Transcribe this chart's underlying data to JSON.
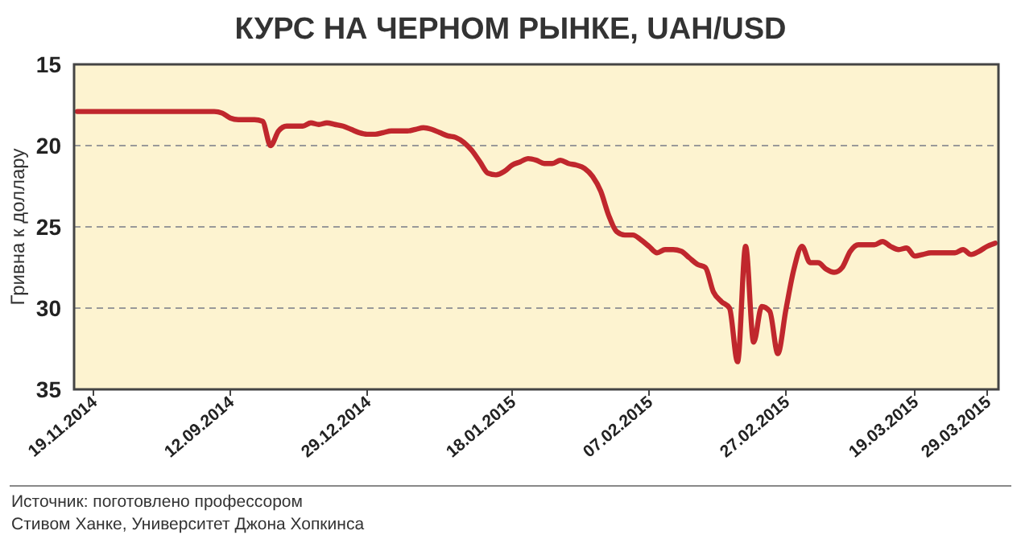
{
  "chart_data": {
    "type": "line",
    "title": "КУРС НА ЧЕРНОМ РЫНКЕ, UAH/USD",
    "ylabel": "Гривна к доллару",
    "categories": [
      null,
      null,
      "19.11.2014",
      null,
      null,
      null,
      null,
      null,
      null,
      null,
      null,
      null,
      null,
      null,
      null,
      null,
      null,
      null,
      null,
      "12.09.2014",
      null,
      null,
      null,
      null,
      null,
      null,
      null,
      null,
      null,
      null,
      null,
      null,
      null,
      null,
      null,
      null,
      "29.12.2014",
      null,
      null,
      null,
      null,
      null,
      null,
      null,
      null,
      null,
      null,
      null,
      null,
      null,
      null,
      null,
      null,
      null,
      "18.01.2015",
      null,
      null,
      null,
      null,
      null,
      null,
      null,
      null,
      null,
      null,
      null,
      null,
      null,
      null,
      null,
      null,
      "07.02.2015",
      null,
      null,
      null,
      null,
      null,
      null,
      null,
      null,
      null,
      null,
      null,
      null,
      null,
      null,
      null,
      null,
      "27.02.2015",
      null,
      null,
      null,
      null,
      null,
      null,
      null,
      null,
      null,
      null,
      null,
      null,
      null,
      null,
      null,
      "19.03.2015",
      null,
      null,
      null,
      null,
      null,
      null,
      null,
      null,
      "29.03.2015",
      null
    ],
    "series": [
      {
        "color": "#c0272d",
        "values": [
          17.9,
          17.9,
          17.9,
          17.9,
          17.9,
          17.9,
          17.9,
          17.9,
          17.9,
          17.9,
          17.9,
          17.9,
          17.9,
          17.9,
          17.9,
          17.9,
          17.9,
          17.9,
          18.0,
          18.3,
          18.4,
          18.4,
          18.4,
          18.5,
          20.0,
          19.1,
          18.8,
          18.8,
          18.8,
          18.6,
          18.7,
          18.6,
          18.7,
          18.8,
          19.0,
          19.2,
          19.3,
          19.3,
          19.2,
          19.1,
          19.1,
          19.1,
          19.0,
          18.9,
          19.0,
          19.2,
          19.4,
          19.5,
          19.8,
          20.3,
          21.0,
          21.7,
          21.8,
          21.6,
          21.2,
          21.0,
          20.8,
          20.9,
          21.1,
          21.1,
          20.9,
          21.1,
          21.2,
          21.4,
          21.9,
          22.8,
          24.3,
          25.3,
          25.5,
          25.5,
          25.8,
          26.2,
          26.6,
          26.4,
          26.4,
          26.5,
          26.9,
          27.3,
          27.5,
          29.0,
          29.6,
          30.0,
          33.3,
          26.2,
          32.1,
          29.9,
          30.2,
          32.8,
          30.1,
          27.6,
          26.2,
          27.2,
          27.2,
          27.6,
          27.8,
          27.5,
          26.5,
          26.1,
          26.1,
          26.1,
          25.9,
          26.2,
          26.4,
          26.3,
          26.8,
          26.7,
          26.6,
          26.6,
          26.6,
          26.6,
          26.4,
          26.7,
          26.5,
          26.2,
          26.0
        ]
      }
    ],
    "ylim": [
      35,
      15
    ],
    "yticks": [
      15,
      20,
      25,
      30,
      35
    ],
    "grid": "y",
    "line_style": "solid",
    "marker": "none",
    "annotations": [
      "Источник: поготовлено профессором",
      "Стивом Ханке, Университет Джона Хопкинса"
    ]
  }
}
